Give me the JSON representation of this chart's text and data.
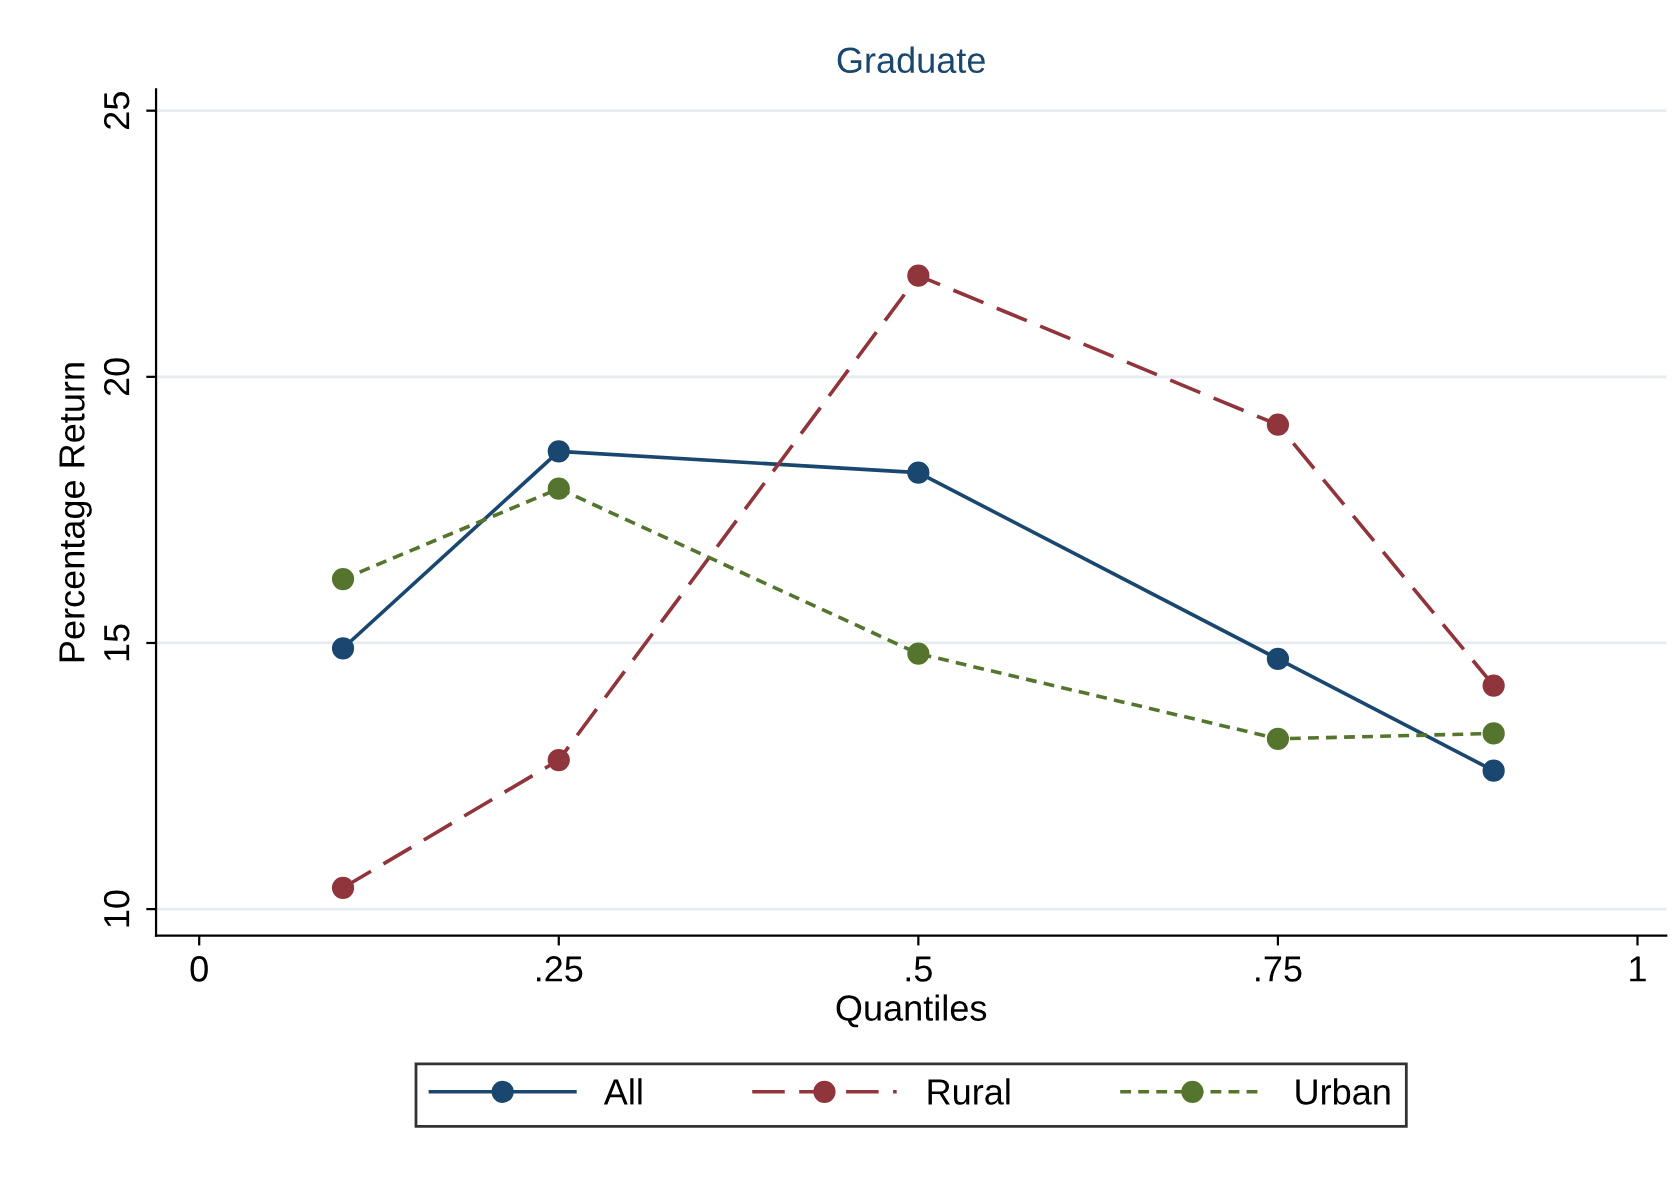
{
  "chart_data": {
    "type": "line",
    "title": "Graduate",
    "xlabel": "Quantiles",
    "ylabel": "Percentage Return",
    "x": [
      0.1,
      0.25,
      0.5,
      0.75,
      0.9
    ],
    "series": [
      {
        "name": "All",
        "color": "#1a476f",
        "values": [
          14.9,
          18.6,
          18.2,
          14.7,
          12.6
        ],
        "line_style": "solid"
      },
      {
        "name": "Rural",
        "color": "#90353b",
        "values": [
          10.4,
          12.8,
          21.9,
          19.1,
          14.2
        ],
        "line_style": "dashed"
      },
      {
        "name": "Urban",
        "color": "#55752f",
        "values": [
          16.2,
          17.9,
          14.8,
          13.2,
          13.3
        ],
        "line_style": "dotted"
      }
    ],
    "xlim": [
      -0.03,
      1.02
    ],
    "xticks": [
      0,
      {
        "value": 0.25,
        "label": ".25"
      },
      {
        "value": 0.5,
        "label": ".5"
      },
      {
        "value": 0.75,
        "label": ".75"
      },
      1
    ],
    "ylim": [
      9.5,
      25.4
    ],
    "yticks": [
      10,
      15,
      20,
      25
    ],
    "grid": "y",
    "legend": "bottom",
    "marker": "circle"
  }
}
